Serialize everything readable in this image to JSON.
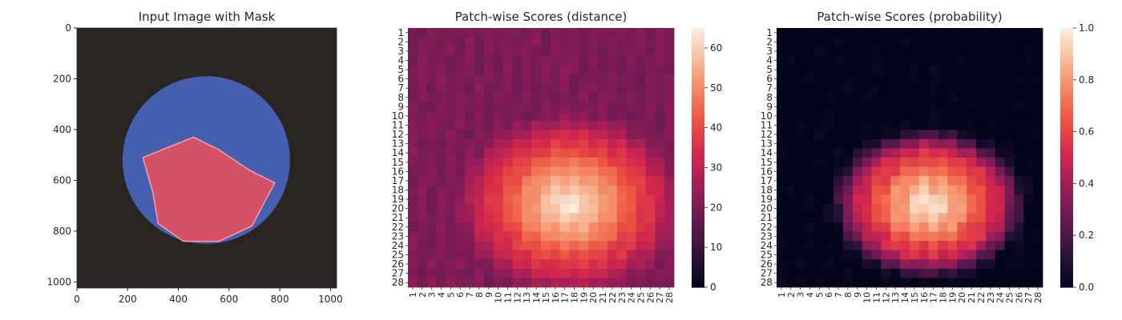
{
  "chart_data": [
    {
      "type": "image",
      "title": "Input Image with Mask",
      "xticks": [
        0,
        200,
        400,
        600,
        800,
        1000
      ],
      "yticks": [
        0,
        200,
        400,
        600,
        800,
        1000
      ],
      "xlim": [
        0,
        1024
      ],
      "ylim": [
        1024,
        0
      ],
      "image_content": {
        "background_color": "#2a2422",
        "object_color": "#4660b0",
        "mask_color": "#e0505e",
        "object_center": [
          510,
          520
        ],
        "object_radius": [
          330,
          330
        ],
        "mask_region": [
          [
            260,
            510
          ],
          [
            460,
            430
          ],
          [
            560,
            480
          ],
          [
            680,
            560
          ],
          [
            780,
            610
          ],
          [
            690,
            780
          ],
          [
            560,
            840
          ],
          [
            420,
            840
          ],
          [
            320,
            770
          ],
          [
            300,
            650
          ]
        ]
      }
    },
    {
      "type": "heatmap",
      "title": "Patch-wise Scores (distance)",
      "rows": [
        "1",
        "2",
        "3",
        "4",
        "5",
        "6",
        "7",
        "8",
        "9",
        "10",
        "11",
        "12",
        "13",
        "14",
        "15",
        "16",
        "17",
        "18",
        "19",
        "20",
        "21",
        "22",
        "23",
        "24",
        "25",
        "26",
        "27",
        "28"
      ],
      "cols": [
        "1",
        "2",
        "3",
        "4",
        "5",
        "6",
        "7",
        "8",
        "9",
        "10",
        "11",
        "12",
        "13",
        "14",
        "15",
        "16",
        "17",
        "18",
        "19",
        "20",
        "21",
        "22",
        "23",
        "24",
        "25",
        "26",
        "27",
        "28"
      ],
      "model": {
        "kind": "blob",
        "center": [
          17.5,
          19.5
        ],
        "radius": [
          8.5,
          7.0
        ],
        "peak": 65,
        "plateau": 55,
        "edge": 38,
        "background": 22
      },
      "colorbar": {
        "min": 0,
        "max": 65,
        "ticks": [
          0,
          10,
          20,
          30,
          40,
          50,
          60
        ]
      }
    },
    {
      "type": "heatmap",
      "title": "Patch-wise Scores (probability)",
      "rows": [
        "1",
        "2",
        "3",
        "4",
        "5",
        "6",
        "7",
        "8",
        "9",
        "10",
        "11",
        "12",
        "13",
        "14",
        "15",
        "16",
        "17",
        "18",
        "19",
        "20",
        "21",
        "22",
        "23",
        "24",
        "25",
        "26",
        "27",
        "28"
      ],
      "cols": [
        "1",
        "2",
        "3",
        "4",
        "5",
        "6",
        "7",
        "8",
        "9",
        "10",
        "11",
        "12",
        "13",
        "14",
        "15",
        "16",
        "17",
        "18",
        "19",
        "20",
        "21",
        "22",
        "23",
        "24",
        "25",
        "26",
        "27",
        "28"
      ],
      "model": {
        "kind": "blob",
        "center": [
          16.5,
          19.5
        ],
        "radius": [
          7.5,
          6.0
        ],
        "peak": 1.0,
        "plateau": 0.85,
        "edge": 0.55,
        "background": 0.0
      },
      "colorbar": {
        "min": 0.0,
        "max": 1.0,
        "ticks": [
          "0.0",
          "0.2",
          "0.4",
          "0.6",
          "0.8",
          "1.0"
        ]
      }
    }
  ]
}
